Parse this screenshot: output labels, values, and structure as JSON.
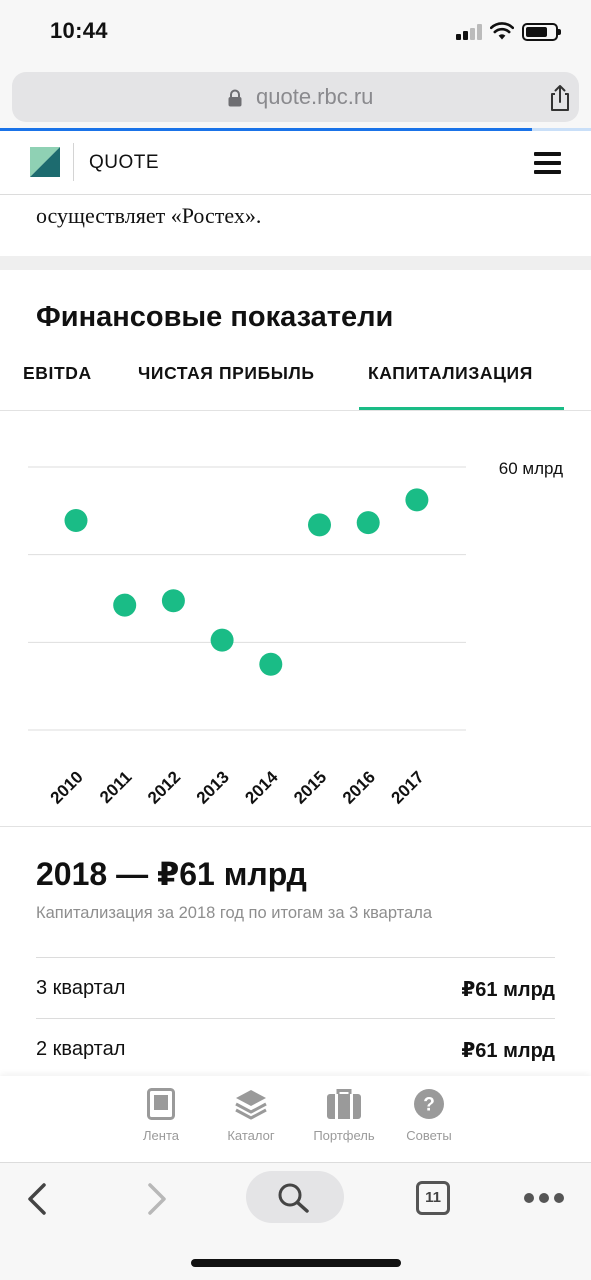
{
  "status_bar": {
    "time": "10:44",
    "battery_level": 0.75
  },
  "browser": {
    "url": "quote.rbc.ru",
    "load_progress": 0.9,
    "tab_count": "11"
  },
  "site": {
    "brand": "QUOTE"
  },
  "article": {
    "tail_text": "осуществляет «Ростех»."
  },
  "financial": {
    "title": "Финансовые показатели",
    "tabs": [
      {
        "label": "EBITDA",
        "active": false
      },
      {
        "label": "ЧИСТАЯ ПРИБЫЛЬ",
        "active": false
      },
      {
        "label": "КАПИТАЛИЗАЦИЯ",
        "active": true
      }
    ],
    "cap_heading": "2018 — ₽61 млрд",
    "cap_subtitle": "Капитализация за 2018 год по итогам за 3 квартала",
    "rows": [
      {
        "label": "3 квартал",
        "value": "₽61 млрд"
      },
      {
        "label": "2 квартал",
        "value": "₽61 млрд"
      }
    ]
  },
  "chart_data": {
    "type": "scatter",
    "title": "",
    "xlabel": "",
    "ylabel": "",
    "categories": [
      "2010",
      "2011",
      "2012",
      "2013",
      "2014",
      "2015",
      "2016",
      "2017"
    ],
    "values": [
      47.8,
      28.5,
      29.5,
      20.5,
      15.0,
      46.8,
      47.3,
      52.5
    ],
    "ylim": [
      0,
      60
    ],
    "y_tick_label": "60 млрд",
    "grid": true,
    "color": "#1abc86"
  },
  "app_nav": [
    {
      "label": "Лента",
      "icon": "feed-icon"
    },
    {
      "label": "Каталог",
      "icon": "catalog-layers-icon"
    },
    {
      "label": "Портфель",
      "icon": "portfolio-briefcase-icon"
    },
    {
      "label": "Советы",
      "icon": "help-icon"
    }
  ],
  "colors": {
    "accent": "#1abc86",
    "browser_progress": "#1a73e8"
  }
}
